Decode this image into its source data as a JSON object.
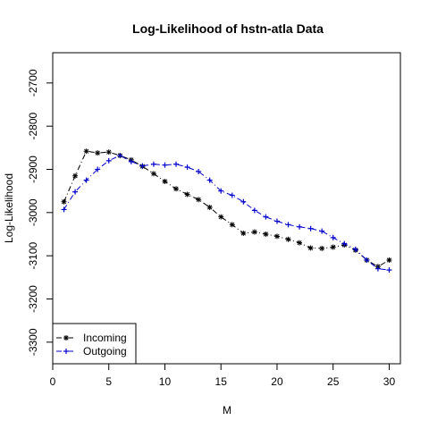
{
  "chart_data": {
    "type": "line",
    "title": "Log-Likelihood of hstn-atla Data",
    "xlabel": "M",
    "ylabel": "Log-Likelihood",
    "xlim": [
      0,
      31
    ],
    "ylim": [
      -3350,
      -2630
    ],
    "xticks": [
      0,
      5,
      10,
      15,
      20,
      25,
      30
    ],
    "yticks": [
      -3300,
      -3200,
      -3100,
      -3000,
      -2900,
      -2800,
      -2700
    ],
    "grid": false,
    "legend_position": "bottom-left",
    "series": [
      {
        "name": "Incoming",
        "color": "#000000",
        "marker": "*",
        "line": "dash-dot",
        "x": [
          1,
          2,
          3,
          4,
          5,
          6,
          7,
          8,
          9,
          10,
          11,
          12,
          13,
          14,
          15,
          16,
          17,
          18,
          19,
          20,
          21,
          22,
          23,
          24,
          25,
          26,
          27,
          28,
          29,
          30
        ],
        "values": [
          -2975,
          -2915,
          -2858,
          -2862,
          -2860,
          -2868,
          -2878,
          -2893,
          -2910,
          -2928,
          -2945,
          -2958,
          -2970,
          -2988,
          -3010,
          -3028,
          -3048,
          -3045,
          -3050,
          -3055,
          -3062,
          -3070,
          -3082,
          -3083,
          -3080,
          -3075,
          -3087,
          -3110,
          -3125,
          -3110
        ]
      },
      {
        "name": "Outgoing",
        "color": "#0000CD",
        "marker": "+",
        "line": "dash-dot",
        "x": [
          1,
          2,
          3,
          4,
          5,
          6,
          7,
          8,
          9,
          10,
          11,
          12,
          13,
          14,
          15,
          16,
          17,
          18,
          19,
          20,
          21,
          22,
          23,
          24,
          25,
          26,
          27,
          28,
          29,
          30
        ],
        "values": [
          -2993,
          -2952,
          -2925,
          -2900,
          -2880,
          -2868,
          -2882,
          -2892,
          -2888,
          -2890,
          -2888,
          -2895,
          -2905,
          -2925,
          -2950,
          -2960,
          -2975,
          -2995,
          -3010,
          -3020,
          -3028,
          -3033,
          -3037,
          -3043,
          -3058,
          -3072,
          -3085,
          -3110,
          -3130,
          -3133
        ]
      }
    ]
  }
}
